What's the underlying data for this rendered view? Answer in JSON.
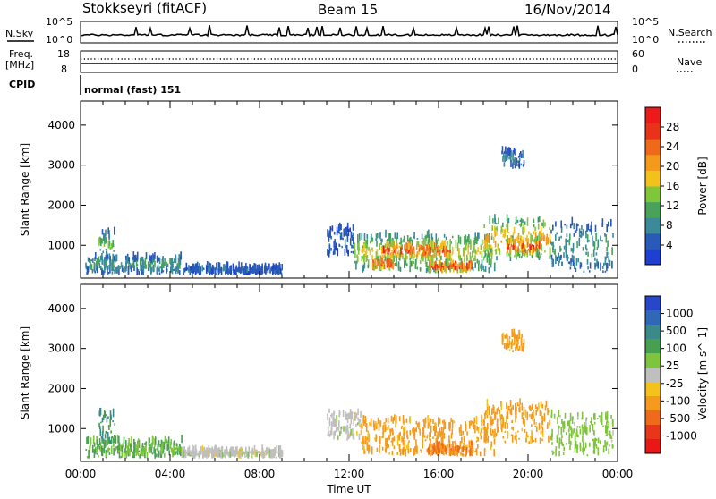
{
  "header": {
    "station": "Stokkseyri (fitACF)",
    "beam": "Beam 15",
    "date": "16/Nov/2014"
  },
  "top_panels": {
    "nsky": {
      "label": "N.Sky",
      "tick_top": "10^5",
      "tick_bottom": "10^0",
      "right_label": "N.Search",
      "right_tick_top": "10^5",
      "right_tick_bottom": "10^0"
    },
    "freq": {
      "label_line1": "Freq.",
      "label_line2": "[MHz]",
      "tick_top": "18",
      "tick_bottom": "8",
      "right_label": "Nave",
      "right_tick_top": "60",
      "right_tick_bottom": "0"
    },
    "cpid": {
      "label": "CPID",
      "text": "normal (fast) 151"
    }
  },
  "colors": {
    "power_scale": [
      "#1f3fd0",
      "#2a5ab8",
      "#3a8a9a",
      "#49a25a",
      "#80c63a",
      "#f3c21a",
      "#f39a1a",
      "#ee6a1a",
      "#e8321a",
      "#ee1a1a"
    ],
    "velocity_scale": [
      "#2846c8",
      "#2e68b6",
      "#3a8a8a",
      "#46a050",
      "#7ec43c",
      "#bfbfbf",
      "#f5c21c",
      "#f59a1c",
      "#f06a1c",
      "#e8361a",
      "#e81818"
    ]
  },
  "chart_data": [
    {
      "type": "heatmap",
      "name": "Power",
      "ylabel": "Slant Range [km]",
      "xlabel": "",
      "ylim": [
        180,
        4600
      ],
      "xlim": [
        0,
        24
      ],
      "yticks": [
        "1000",
        "2000",
        "3000",
        "4000"
      ],
      "xticks": [
        "00:00",
        "04:00",
        "08:00",
        "12:00",
        "16:00",
        "20:00",
        "00:00"
      ],
      "colorbar": {
        "label": "Power [dB]",
        "ticks": [
          "4",
          "8",
          "12",
          "16",
          "20",
          "24",
          "28"
        ],
        "range": [
          0,
          30
        ]
      },
      "regions": [
        {
          "t": [
            0.2,
            4.5
          ],
          "r": [
            250,
            650
          ],
          "level": 10
        },
        {
          "t": [
            0.8,
            1.5
          ],
          "r": [
            600,
            1300
          ],
          "level": 12
        },
        {
          "t": [
            4.5,
            9.0
          ],
          "r": [
            250,
            400
          ],
          "level": 6
        },
        {
          "t": [
            11.0,
            12.2
          ],
          "r": [
            700,
            1400
          ],
          "level": 6
        },
        {
          "t": [
            12.2,
            18.5
          ],
          "r": [
            300,
            1200
          ],
          "level": 16
        },
        {
          "t": [
            13.5,
            16.5
          ],
          "r": [
            600,
            1000
          ],
          "level": 26
        },
        {
          "t": [
            13.0,
            14.0
          ],
          "r": [
            350,
            550
          ],
          "level": 27
        },
        {
          "t": [
            15.5,
            17.5
          ],
          "r": [
            300,
            500
          ],
          "level": 28
        },
        {
          "t": [
            18.0,
            21.0
          ],
          "r": [
            600,
            1600
          ],
          "level": 20
        },
        {
          "t": [
            19.0,
            20.5
          ],
          "r": [
            700,
            1100
          ],
          "level": 27
        },
        {
          "t": [
            18.8,
            19.8
          ],
          "r": [
            2900,
            3300
          ],
          "level": 8
        },
        {
          "t": [
            21.0,
            23.8
          ],
          "r": [
            300,
            1500
          ],
          "level": 10
        }
      ]
    },
    {
      "type": "heatmap",
      "name": "Velocity",
      "ylabel": "Slant Range [km]",
      "xlabel": "Time UT",
      "ylim": [
        180,
        4600
      ],
      "xlim": [
        0,
        24
      ],
      "yticks": [
        "1000",
        "2000",
        "3000",
        "4000"
      ],
      "xticks": [
        "00:00",
        "04:00",
        "08:00",
        "12:00",
        "16:00",
        "20:00",
        "00:00"
      ],
      "colorbar": {
        "label": "Velocity [m s^-1]",
        "ticks": [
          "1000",
          "500",
          "100",
          "25",
          "-25",
          "-100",
          "-500",
          "-1000"
        ]
      },
      "regions": [
        {
          "t": [
            0.2,
            4.5
          ],
          "r": [
            250,
            650
          ],
          "velocity": 100
        },
        {
          "t": [
            0.8,
            1.5
          ],
          "r": [
            600,
            1400
          ],
          "velocity": 300
        },
        {
          "t": [
            4.5,
            9.0
          ],
          "r": [
            250,
            400
          ],
          "velocity": 0
        },
        {
          "t": [
            11.0,
            12.5
          ],
          "r": [
            700,
            1400
          ],
          "velocity": 0
        },
        {
          "t": [
            12.5,
            18.5
          ],
          "r": [
            300,
            1200
          ],
          "velocity": -150
        },
        {
          "t": [
            15.5,
            17.5
          ],
          "r": [
            300,
            500
          ],
          "velocity": -300
        },
        {
          "t": [
            18.0,
            21.0
          ],
          "r": [
            600,
            1600
          ],
          "velocity": -150
        },
        {
          "t": [
            18.8,
            19.8
          ],
          "r": [
            2900,
            3300
          ],
          "velocity": -150
        },
        {
          "t": [
            21.0,
            23.8
          ],
          "r": [
            300,
            1300
          ],
          "velocity": 50
        }
      ]
    }
  ]
}
